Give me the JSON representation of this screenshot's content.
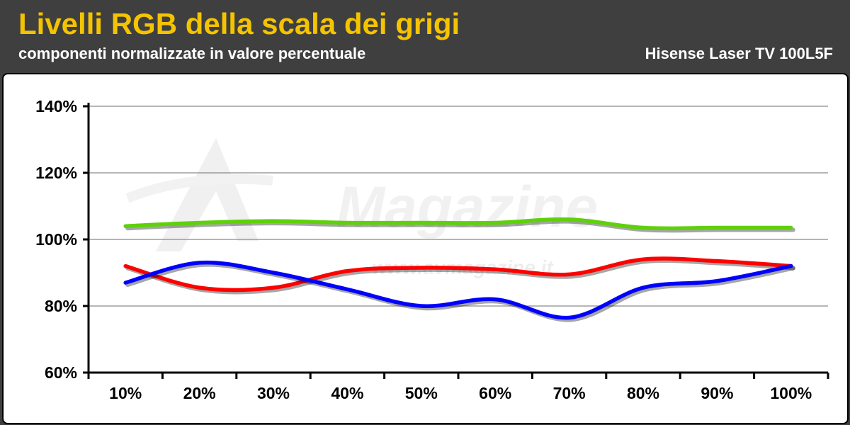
{
  "header": {
    "title": "Livelli RGB della scala dei grigi",
    "subtitle": "componenti normalizzate in valore percentuale",
    "model": "Hisense Laser TV 100L5F"
  },
  "watermark": {
    "brand": "Magazine",
    "url": "www.avmagazine.it"
  },
  "chart_data": {
    "type": "line",
    "categories": [
      "10%",
      "20%",
      "30%",
      "40%",
      "50%",
      "60%",
      "70%",
      "80%",
      "90%",
      "100%"
    ],
    "ylim": [
      60,
      140
    ],
    "yticks": [
      60,
      80,
      100,
      120,
      140
    ],
    "ytick_suffix": "%",
    "grid": true,
    "series": [
      {
        "color": "#5ed10a",
        "values": [
          104,
          105,
          105.5,
          105,
          105,
          105,
          106,
          103.5,
          103.5,
          103.5
        ]
      },
      {
        "color": "#ff0000",
        "values": [
          92,
          85.5,
          85.5,
          90.5,
          91.5,
          91,
          89.5,
          94,
          93.5,
          92
        ]
      },
      {
        "color": "#0000ff",
        "values": [
          87,
          93,
          90,
          85,
          80,
          82,
          76.5,
          85.5,
          87.5,
          92
        ]
      }
    ]
  }
}
